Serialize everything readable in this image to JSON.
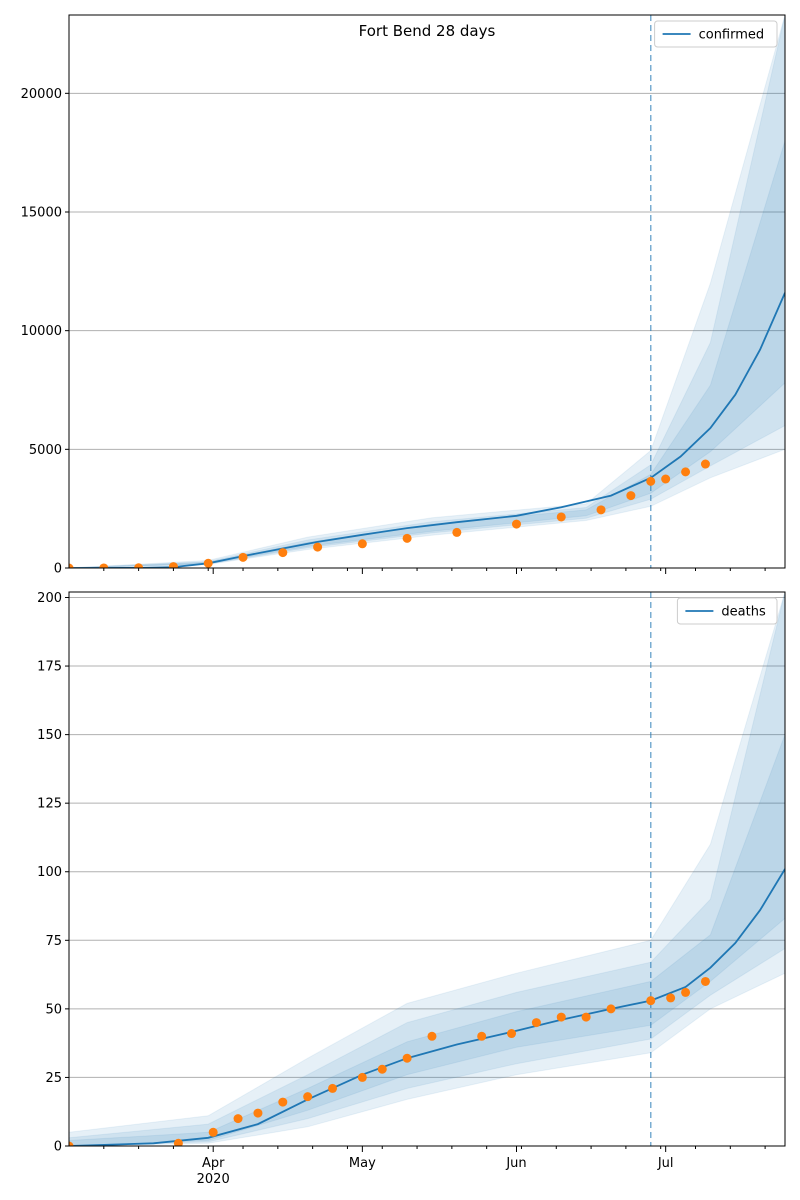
{
  "chart_data": [
    {
      "type": "line",
      "title": "Fort Bend 28 days",
      "xlabel": "",
      "ylabel": "",
      "x_range": [
        "2020-03-03",
        "2020-07-25"
      ],
      "ylim": [
        0,
        23300
      ],
      "y_ticks": [
        0,
        5000,
        10000,
        15000,
        20000
      ],
      "y_tick_labels": [
        "0",
        "5000",
        "10000",
        "15000",
        "20000"
      ],
      "grid": "horizontal",
      "legend_position": "top-right",
      "forecast_start": "2020-06-28",
      "series": [
        {
          "name": "confirmed",
          "color": "#1f77b4",
          "kind": "line",
          "x": [
            "2020-03-03",
            "2020-03-17",
            "2020-03-24",
            "2020-03-31",
            "2020-04-07",
            "2020-04-15",
            "2020-04-22",
            "2020-05-01",
            "2020-05-10",
            "2020-05-20",
            "2020-06-01",
            "2020-06-10",
            "2020-06-20",
            "2020-06-28",
            "2020-07-04",
            "2020-07-10",
            "2020-07-15",
            "2020-07-20",
            "2020-07-25"
          ],
          "y": [
            0,
            5,
            40,
            200,
            500,
            820,
            1100,
            1400,
            1680,
            1930,
            2200,
            2560,
            3050,
            3800,
            4700,
            5900,
            7300,
            9200,
            11600
          ]
        },
        {
          "name": "",
          "color": "#ff7f0e",
          "kind": "scatter",
          "x": [
            "2020-03-03",
            "2020-03-10",
            "2020-03-17",
            "2020-03-24",
            "2020-03-31",
            "2020-04-07",
            "2020-04-15",
            "2020-04-22",
            "2020-05-01",
            "2020-05-10",
            "2020-05-20",
            "2020-06-01",
            "2020-06-10",
            "2020-06-18",
            "2020-06-24",
            "2020-06-28",
            "2020-07-01",
            "2020-07-05",
            "2020-07-09"
          ],
          "y": [
            0,
            2,
            10,
            60,
            200,
            450,
            650,
            880,
            1020,
            1250,
            1500,
            1850,
            2150,
            2450,
            3050,
            3650,
            3750,
            4050,
            4380
          ]
        }
      ],
      "bands": [
        {
          "x": [
            "2020-03-03",
            "2020-03-31",
            "2020-04-20",
            "2020-05-15",
            "2020-06-15",
            "2020-06-28",
            "2020-07-10",
            "2020-07-25"
          ],
          "low": [
            0,
            150,
            780,
            1380,
            2000,
            2600,
            3800,
            5000
          ],
          "high": [
            0,
            320,
            1300,
            2120,
            2700,
            4950,
            12000,
            23300
          ]
        },
        {
          "x": [
            "2020-03-03",
            "2020-03-31",
            "2020-04-20",
            "2020-05-15",
            "2020-06-15",
            "2020-06-28",
            "2020-07-10",
            "2020-07-25"
          ],
          "low": [
            0,
            170,
            850,
            1480,
            2100,
            2900,
            4300,
            6000
          ],
          "high": [
            0,
            270,
            1180,
            1950,
            2550,
            4350,
            9500,
            23300
          ]
        },
        {
          "x": [
            "2020-03-03",
            "2020-03-31",
            "2020-04-20",
            "2020-05-15",
            "2020-06-15",
            "2020-06-28",
            "2020-07-10",
            "2020-07-25"
          ],
          "low": [
            0,
            185,
            910,
            1550,
            2200,
            3150,
            4900,
            7800
          ],
          "high": [
            0,
            240,
            1080,
            1850,
            2450,
            3950,
            7700,
            18000
          ]
        }
      ]
    },
    {
      "type": "line",
      "title": "",
      "xlabel": "",
      "ylabel": "",
      "x_range": [
        "2020-03-03",
        "2020-07-25"
      ],
      "ylim": [
        0,
        202
      ],
      "y_ticks": [
        0,
        25,
        50,
        75,
        100,
        125,
        150,
        175,
        200
      ],
      "y_tick_labels": [
        "0",
        "25",
        "50",
        "75",
        "100",
        "125",
        "150",
        "175",
        "200"
      ],
      "x_tick_labels": [
        {
          "date": "2020-04-01",
          "label": "Apr",
          "sub": "2020"
        },
        {
          "date": "2020-05-01",
          "label": "May",
          "sub": ""
        },
        {
          "date": "2020-06-01",
          "label": "Jun",
          "sub": ""
        },
        {
          "date": "2020-07-01",
          "label": "Jul",
          "sub": ""
        }
      ],
      "grid": "horizontal",
      "legend_position": "top-right",
      "forecast_start": "2020-06-28",
      "series": [
        {
          "name": "deaths",
          "color": "#1f77b4",
          "kind": "line",
          "x": [
            "2020-03-03",
            "2020-03-20",
            "2020-03-31",
            "2020-04-10",
            "2020-04-20",
            "2020-05-01",
            "2020-05-10",
            "2020-05-20",
            "2020-06-01",
            "2020-06-10",
            "2020-06-20",
            "2020-06-28",
            "2020-07-05",
            "2020-07-10",
            "2020-07-15",
            "2020-07-20",
            "2020-07-25"
          ],
          "y": [
            0,
            1,
            3,
            8,
            17,
            26,
            32,
            37,
            42,
            46,
            50,
            53,
            58,
            65,
            74,
            86,
            101
          ]
        },
        {
          "name": "",
          "color": "#ff7f0e",
          "kind": "scatter",
          "x": [
            "2020-03-03",
            "2020-03-25",
            "2020-04-01",
            "2020-04-06",
            "2020-04-10",
            "2020-04-15",
            "2020-04-20",
            "2020-04-25",
            "2020-05-01",
            "2020-05-05",
            "2020-05-10",
            "2020-05-15",
            "2020-05-25",
            "2020-05-31",
            "2020-06-05",
            "2020-06-10",
            "2020-06-15",
            "2020-06-20",
            "2020-06-28",
            "2020-07-02",
            "2020-07-05",
            "2020-07-09"
          ],
          "y": [
            0,
            1,
            5,
            10,
            12,
            16,
            18,
            21,
            25,
            28,
            32,
            40,
            40,
            41,
            45,
            47,
            47,
            50,
            53,
            54,
            56,
            60
          ]
        }
      ],
      "bands": [
        {
          "x": [
            "2020-03-03",
            "2020-03-31",
            "2020-04-20",
            "2020-05-10",
            "2020-06-01",
            "2020-06-28",
            "2020-07-10",
            "2020-07-25"
          ],
          "low": [
            0,
            1,
            7,
            17,
            26,
            34,
            50,
            63
          ],
          "high": [
            5,
            11,
            32,
            52,
            63,
            75,
            110,
            202
          ]
        },
        {
          "x": [
            "2020-03-03",
            "2020-03-31",
            "2020-04-20",
            "2020-05-10",
            "2020-06-01",
            "2020-06-28",
            "2020-07-10",
            "2020-07-25"
          ],
          "low": [
            0,
            1.5,
            10,
            21,
            30,
            39,
            55,
            72
          ],
          "high": [
            3,
            8,
            26,
            45,
            56,
            67,
            90,
            202
          ]
        },
        {
          "x": [
            "2020-03-03",
            "2020-03-31",
            "2020-04-20",
            "2020-05-10",
            "2020-06-01",
            "2020-06-28",
            "2020-07-10",
            "2020-07-25"
          ],
          "low": [
            0,
            2,
            13,
            26,
            36,
            44,
            60,
            83
          ],
          "high": [
            2,
            5,
            21,
            38,
            49,
            60,
            77,
            150
          ]
        }
      ]
    }
  ]
}
